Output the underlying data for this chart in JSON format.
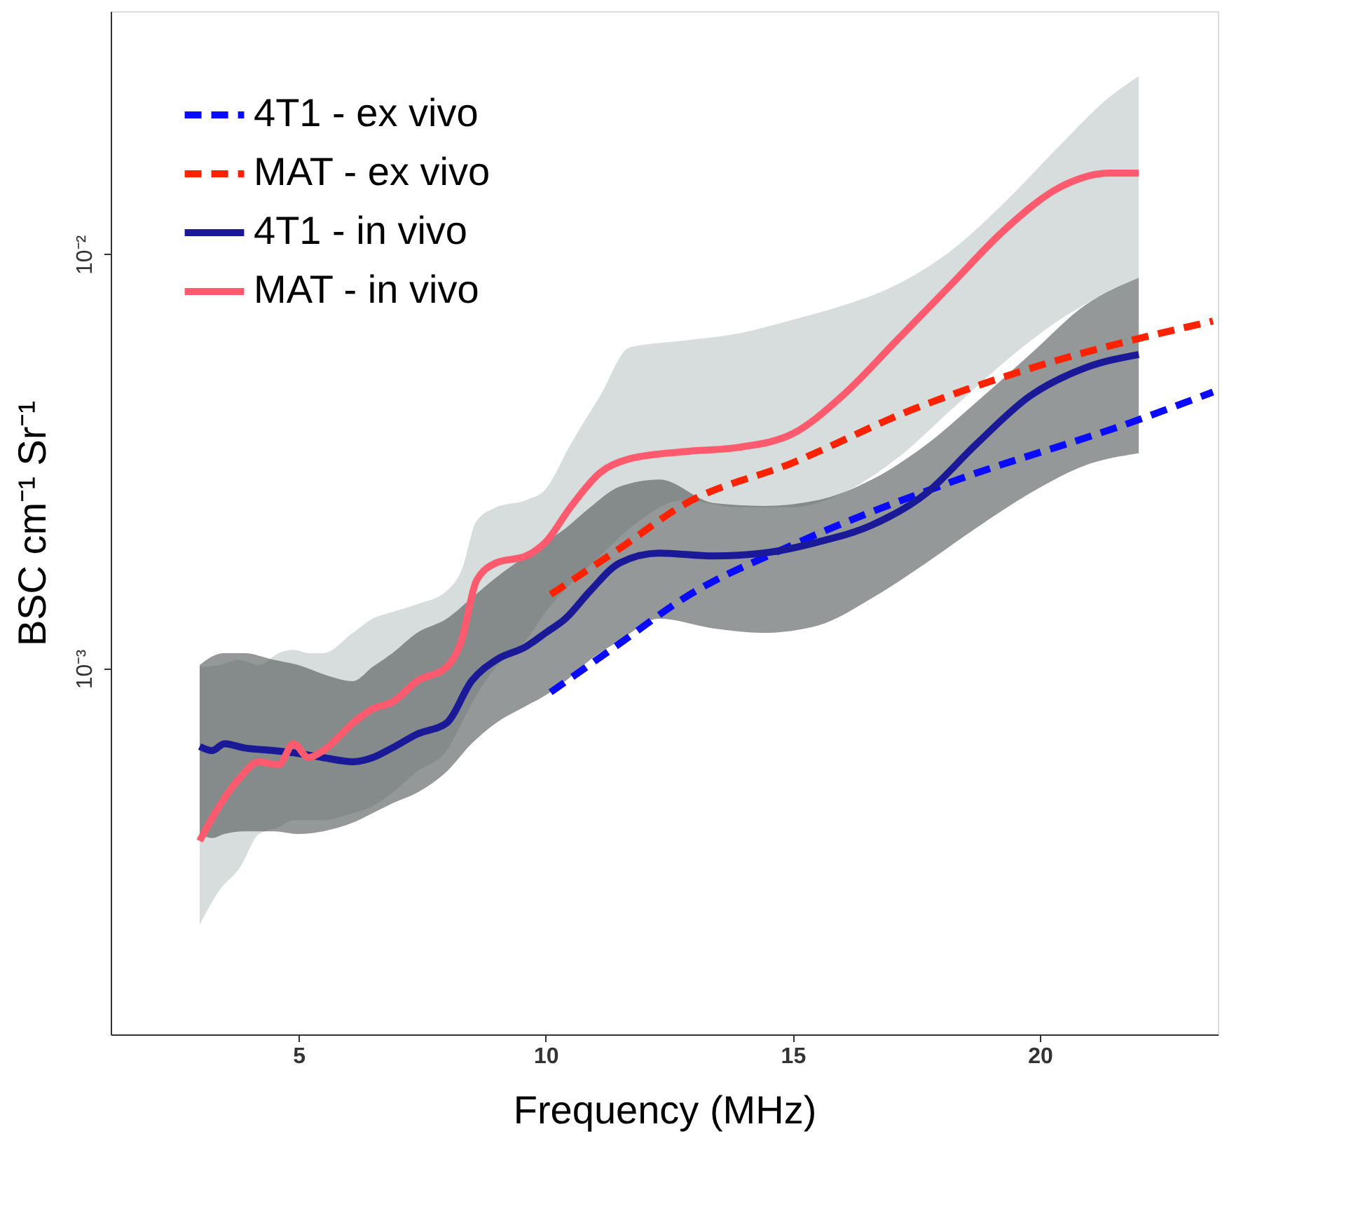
{
  "chart_data": {
    "type": "line",
    "xlabel": "Frequency (MHz)",
    "ylabel": "BSC cm⁻¹ Sr⁻¹",
    "xlim": [
      1.2,
      23.6
    ],
    "xticks": [
      5,
      10,
      15,
      20
    ],
    "ylim": [
      0.000131,
      0.0386
    ],
    "yticks": [
      {
        "value": 0.01,
        "label": "10⁻²"
      },
      {
        "value": 0.001,
        "label": "10⁻³"
      }
    ],
    "log": "y",
    "grid": false,
    "legend": "top left",
    "marker": "none",
    "series": [
      {
        "name": "4T1 - ex vivo",
        "color": "#0a0aff",
        "line_style": "dashed",
        "x": [
          10.1,
          11.5,
          12.8,
          15,
          18.2,
          21.9,
          23.5
        ],
        "values": [
          0.000877,
          0.00115,
          0.00148,
          0.00199,
          0.00282,
          0.00395,
          0.00465
        ]
      },
      {
        "name": "MAT - ex vivo",
        "color": "#ff2200",
        "line_style": "dashed",
        "x": [
          10.1,
          11.5,
          12.8,
          15,
          17.4,
          20,
          23.5
        ],
        "values": [
          0.00151,
          0.00195,
          0.00249,
          0.00314,
          0.00421,
          0.00539,
          0.0069
        ]
      },
      {
        "name": "4T1 - in vivo",
        "color": "#1a1a99",
        "line_style": "solid",
        "x": [
          3,
          3.25,
          3.5,
          3.9,
          4.5,
          5,
          5.5,
          6.1,
          6.5,
          6.9,
          7.4,
          8,
          8.5,
          9,
          9.6,
          10,
          10.4,
          10.9,
          11.5,
          12.3,
          13.4,
          14.4,
          15.5,
          16.6,
          17.7,
          18.7,
          19.8,
          20.9,
          22
        ],
        "values": [
          0.000649,
          0.000634,
          0.000659,
          0.000644,
          0.000634,
          0.000624,
          0.00061,
          0.000596,
          0.00061,
          0.000644,
          0.000695,
          0.00074,
          0.000933,
          0.00105,
          0.00113,
          0.00122,
          0.00132,
          0.00154,
          0.0018,
          0.0019,
          0.00187,
          0.0019,
          0.00202,
          0.00222,
          0.00265,
          0.00347,
          0.00455,
          0.00531,
          0.00573
        ],
        "lower": [
          0.000399,
          0.00039,
          0.000399,
          0.000405,
          0.000405,
          0.000399,
          0.000405,
          0.000425,
          0.000448,
          0.000473,
          0.000502,
          0.000565,
          0.000659,
          0.00074,
          0.000812,
          0.000863,
          0.000933,
          0.00105,
          0.00117,
          0.00132,
          0.00125,
          0.00122,
          0.00127,
          0.00148,
          0.0018,
          0.00218,
          0.00265,
          0.00309,
          0.00331
        ],
        "upper": [
          0.00102,
          0.00107,
          0.00109,
          0.00109,
          0.00105,
          0.00102,
          0.00097,
          0.000933,
          0.00101,
          0.00109,
          0.00122,
          0.00132,
          0.00148,
          0.00166,
          0.00187,
          0.00202,
          0.00218,
          0.00245,
          0.00275,
          0.00286,
          0.00251,
          0.00247,
          0.00255,
          0.00286,
          0.00347,
          0.00438,
          0.00573,
          0.00751,
          0.00877
        ]
      },
      {
        "name": "MAT - in vivo",
        "color": "#ff5a6e",
        "line_style": "solid",
        "x": [
          3,
          3.4,
          3.8,
          4.2,
          4.6,
          4.9,
          5.2,
          5.5,
          6.1,
          6.5,
          6.9,
          7.4,
          8,
          8.3,
          8.6,
          9,
          9.6,
          10,
          10.5,
          11.1,
          11.7,
          12.8,
          13.9,
          15,
          16,
          17.1,
          18.2,
          19.3,
          20.4,
          21.4,
          22
        ],
        "values": [
          0.000384,
          0.000466,
          0.000543,
          0.000596,
          0.000586,
          0.000659,
          0.00061,
          0.000634,
          0.000739,
          0.0008,
          0.00083,
          0.000933,
          0.00101,
          0.00117,
          0.00163,
          0.0018,
          0.00187,
          0.00202,
          0.00245,
          0.00297,
          0.00321,
          0.00334,
          0.00342,
          0.00369,
          0.00455,
          0.00619,
          0.00844,
          0.0115,
          0.0145,
          0.0157,
          0.0157
        ],
        "lower": [
          0.000241,
          0.000292,
          0.000329,
          0.000399,
          0.000414,
          0.000431,
          0.000431,
          0.000431,
          0.000448,
          0.000466,
          0.000502,
          0.000565,
          0.000634,
          0.00074,
          0.000863,
          0.00101,
          0.00117,
          0.00137,
          0.0016,
          0.00187,
          0.00218,
          0.00255,
          0.00245,
          0.00245,
          0.00265,
          0.00321,
          0.00421,
          0.00552,
          0.00695,
          0.00812,
          0.00877
        ],
        "upper": [
          0.00101,
          0.00102,
          0.00105,
          0.00102,
          0.00109,
          0.00111,
          0.00109,
          0.00109,
          0.00122,
          0.00132,
          0.00137,
          0.00143,
          0.00154,
          0.00173,
          0.00227,
          0.00245,
          0.00255,
          0.00271,
          0.00347,
          0.00455,
          0.00596,
          0.00619,
          0.00644,
          0.00695,
          0.00751,
          0.00844,
          0.0102,
          0.0134,
          0.0183,
          0.0239,
          0.0269
        ]
      }
    ]
  }
}
